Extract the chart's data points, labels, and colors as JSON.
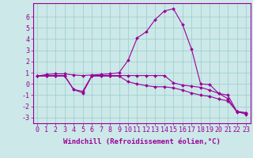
{
  "background_color": "#cce8e8",
  "grid_color": "#99cccc",
  "line_color": "#990099",
  "marker": "D",
  "marker_size": 2,
  "xlabel": "Windchill (Refroidissement éolien,°C)",
  "xlabel_fontsize": 6.5,
  "tick_fontsize": 6,
  "xlim": [
    -0.5,
    23.5
  ],
  "ylim": [
    -3.5,
    7.2
  ],
  "yticks": [
    -3,
    -2,
    -1,
    0,
    1,
    2,
    3,
    4,
    5,
    6
  ],
  "xticks": [
    0,
    1,
    2,
    3,
    4,
    5,
    6,
    7,
    8,
    9,
    10,
    11,
    12,
    13,
    14,
    15,
    16,
    17,
    18,
    19,
    20,
    21,
    22,
    23
  ],
  "series1": [
    0.7,
    0.85,
    0.9,
    0.9,
    0.8,
    0.75,
    0.8,
    0.85,
    0.9,
    1.0,
    2.1,
    4.1,
    4.65,
    5.75,
    6.5,
    6.7,
    5.3,
    3.1,
    0.0,
    -0.05,
    -0.85,
    -1.3,
    -2.5,
    -2.6
  ],
  "series2": [
    0.7,
    0.75,
    0.75,
    0.75,
    -0.5,
    -0.65,
    0.75,
    0.75,
    0.75,
    0.75,
    0.75,
    0.75,
    0.75,
    0.75,
    0.75,
    0.1,
    -0.1,
    -0.2,
    -0.3,
    -0.55,
    -0.85,
    -1.0,
    -2.45,
    -2.55
  ],
  "series3": [
    0.7,
    0.7,
    0.7,
    0.7,
    -0.5,
    -0.8,
    0.7,
    0.7,
    0.7,
    0.7,
    0.2,
    0.0,
    -0.15,
    -0.25,
    -0.25,
    -0.35,
    -0.55,
    -0.8,
    -1.0,
    -1.1,
    -1.35,
    -1.5,
    -2.45,
    -2.7
  ]
}
